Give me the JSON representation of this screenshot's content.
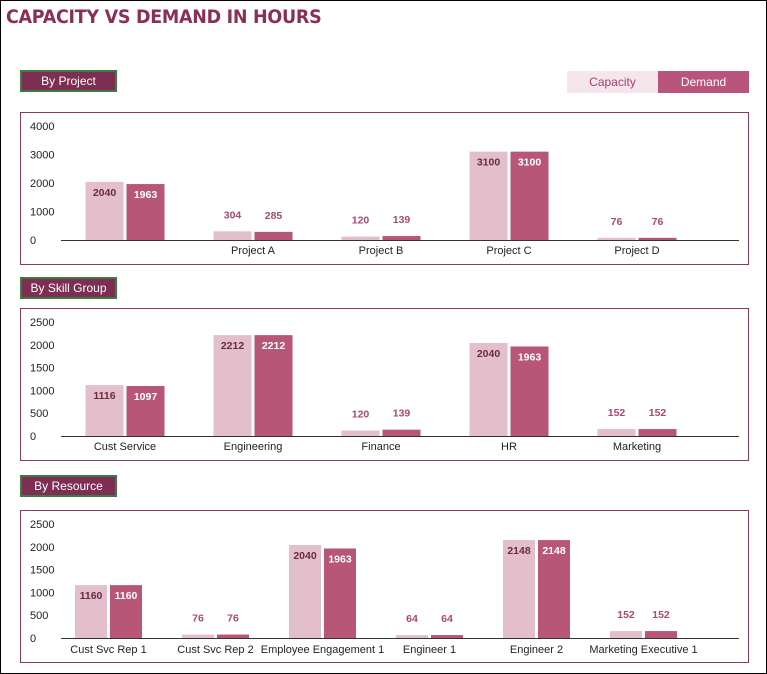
{
  "page_title": "CAPACITY VS DEMAND IN HOURS",
  "legend": {
    "capacity": "Capacity",
    "demand": "Demand"
  },
  "colors": {
    "capacity": "#e3bfcc",
    "demand": "#b85677",
    "title": "#8a2f55",
    "button": "#7d2e52",
    "button_border": "#3a7d44"
  },
  "sections": {
    "project": {
      "label": "By Project"
    },
    "skill": {
      "label": "By Skill Group"
    },
    "resource": {
      "label": "By Resource"
    }
  },
  "chart_data": [
    {
      "type": "bar",
      "ylim": [
        0,
        4000
      ],
      "yticks": [
        0,
        1000,
        2000,
        3000,
        4000
      ],
      "categories": [
        "",
        "Project A",
        "Project B",
        "Project C",
        "Project D"
      ],
      "series": [
        {
          "name": "Capacity",
          "values": [
            2040,
            304,
            120,
            3100,
            76
          ]
        },
        {
          "name": "Demand",
          "values": [
            1963,
            285,
            139,
            3100,
            76
          ]
        }
      ],
      "grid": false
    },
    {
      "type": "bar",
      "ylim": [
        0,
        2500
      ],
      "yticks": [
        0,
        500,
        1000,
        1500,
        2000,
        2500
      ],
      "categories": [
        "Cust Service",
        "Engineering",
        "Finance",
        "HR",
        "Marketing"
      ],
      "series": [
        {
          "name": "Capacity",
          "values": [
            1116,
            2212,
            120,
            2040,
            152
          ]
        },
        {
          "name": "Demand",
          "values": [
            1097,
            2212,
            139,
            1963,
            152
          ]
        }
      ],
      "grid": false
    },
    {
      "type": "bar",
      "ylim": [
        0,
        2500
      ],
      "yticks": [
        0,
        500,
        1000,
        1500,
        2000,
        2500
      ],
      "categories": [
        "Cust Svc Rep 1",
        "Cust Svc Rep 2",
        "Employee Engagement 1",
        "Engineer 1",
        "Engineer 2",
        "Marketing Executive 1"
      ],
      "series": [
        {
          "name": "Capacity",
          "values": [
            1160,
            76,
            2040,
            64,
            2148,
            152
          ]
        },
        {
          "name": "Demand",
          "values": [
            1160,
            76,
            1963,
            64,
            2148,
            152
          ]
        }
      ],
      "grid": false
    }
  ]
}
